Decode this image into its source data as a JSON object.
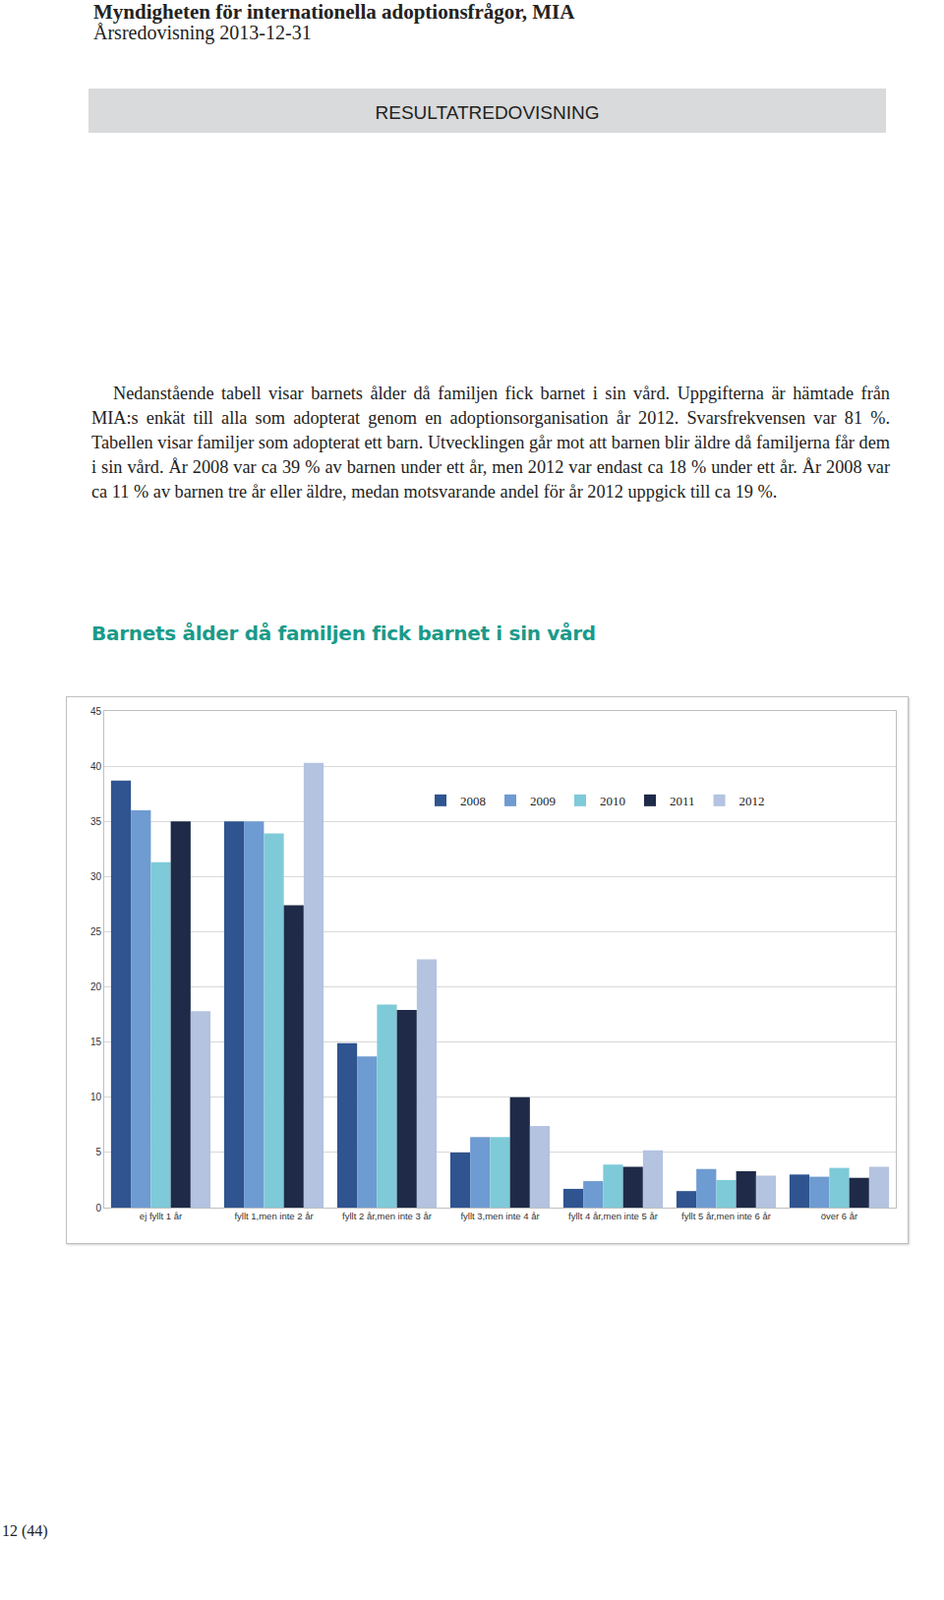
{
  "header": {
    "organization": "Myndigheten för internationella adoptionsfrågor, MIA",
    "report": "Årsredovisning 2013-12-31"
  },
  "section": "RESULTATREDOVISNING",
  "paragraph": "Nedanstående tabell visar barnets ålder då familjen fick barnet i sin vård. Uppgifterna är hämtade från MIA:s enkät till alla som adopterat genom en adoptionsorganisation år 2012. Svarsfrekvensen var 81 %. Tabellen visar familjer som adopterat ett barn. Utvecklingen går mot att barnen blir äldre då familjerna får dem i sin vård. År 2008 var ca 39 % av barnen under ett år, men 2012 var endast ca 18 % under ett år. År 2008 var ca 11 % av barnen tre år eller äldre, medan motsvarande andel för år 2012 uppgick till ca 19 %.",
  "chart_data": {
    "type": "bar",
    "title": "Barnets ålder då familjen fick barnet i sin vård",
    "categories": [
      "ej fyllt 1 år",
      "fyllt 1,men inte 2 år",
      "fyllt 2 år,men inte 3 år",
      "fyllt 3,men inte 4 år",
      "fyllt 4 år,men inte 5 år",
      "fyllt 5 år,men inte 6 år",
      "över 6 år"
    ],
    "series": [
      {
        "name": "2008",
        "color": "#2f5490",
        "values": [
          38.7,
          35.0,
          14.9,
          5.0,
          1.7,
          1.5,
          3.0
        ]
      },
      {
        "name": "2009",
        "color": "#6e9bd1",
        "values": [
          36.0,
          35.0,
          13.7,
          6.4,
          2.4,
          3.5,
          2.8
        ]
      },
      {
        "name": "2010",
        "color": "#7ecad8",
        "values": [
          31.3,
          33.9,
          18.4,
          6.4,
          3.9,
          2.5,
          3.6
        ]
      },
      {
        "name": "2011",
        "color": "#1f2a48",
        "values": [
          35.0,
          27.4,
          17.9,
          10.0,
          3.7,
          3.3,
          2.7
        ]
      },
      {
        "name": "2012",
        "color": "#b3c3e0",
        "values": [
          17.8,
          40.3,
          22.5,
          7.4,
          5.2,
          2.9,
          3.7
        ]
      }
    ],
    "ylim": [
      0,
      45
    ],
    "yticks": [
      0,
      5,
      10,
      15,
      20,
      25,
      30,
      35,
      40,
      45
    ],
    "grid": true,
    "legend": "top right"
  },
  "page_number": "12 (44)"
}
